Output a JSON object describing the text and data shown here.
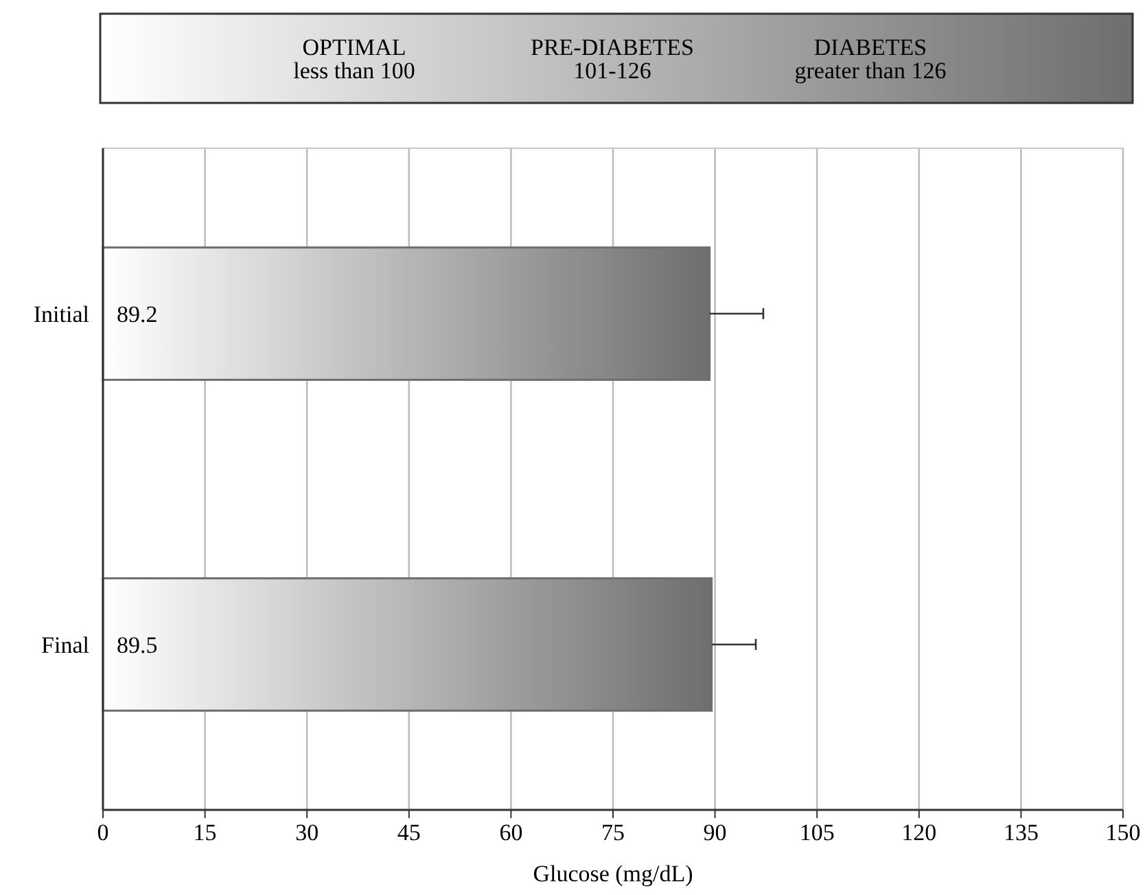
{
  "chart_data": {
    "type": "bar",
    "orientation": "horizontal",
    "categories": [
      "Initial",
      "Final"
    ],
    "values": [
      89.2,
      89.5
    ],
    "errors": [
      7.9,
      6.5
    ],
    "color": "#6e6e6e",
    "data_labels": true,
    "xlabel": "Glucose (mg/dL)",
    "xlim": [
      0,
      150
    ],
    "xticks": [
      0,
      15,
      30,
      45,
      60,
      75,
      90,
      105,
      120,
      135,
      150
    ],
    "grid": "x",
    "annotations": [
      "OPTIMAL",
      "less than 100",
      "PRE-DIABETES",
      "101-126",
      "DIABETES",
      "greater than 126"
    ]
  }
}
